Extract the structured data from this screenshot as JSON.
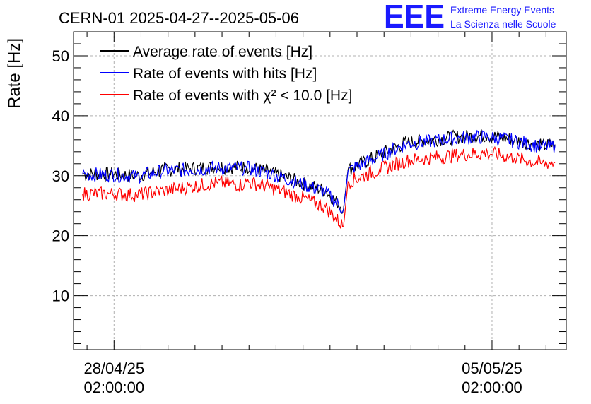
{
  "chart_data": {
    "type": "line",
    "title": "CERN-01 2025-04-27--2025-05-06",
    "ylabel": "Rate [Hz]",
    "xlabel": "",
    "ylim": [
      1,
      54
    ],
    "yticks": [
      10,
      20,
      30,
      40,
      50
    ],
    "xlim": [
      "2025-04-27 08:00",
      "2025-05-06 11:00"
    ],
    "xticks": [
      {
        "date": "2025-04-28 02:00",
        "label_date": "28/04/25",
        "label_time": "02:00:00"
      },
      {
        "date": "2025-05-05 02:00",
        "label_date": "05/05/25",
        "label_time": "02:00:00"
      }
    ],
    "grid": true,
    "legend_position": "top-left",
    "logo": {
      "mark": "EEE",
      "line1": "Extreme Energy Events",
      "line2": "La Scienza nelle Scuole",
      "color": "#1a1aff"
    },
    "series": [
      {
        "name": "Average rate of events [Hz]",
        "color": "#000000",
        "x": [
          "2025-04-27 12:00",
          "2025-04-28 00:00",
          "2025-04-28 12:00",
          "2025-04-29 00:00",
          "2025-04-29 12:00",
          "2025-04-30 00:00",
          "2025-04-30 12:00",
          "2025-04-30 13:00",
          "2025-05-01 00:00",
          "2025-05-01 12:00",
          "2025-05-02 00:00",
          "2025-05-02 08:00",
          "2025-05-02 10:00",
          "2025-05-03 00:00",
          "2025-05-03 12:00",
          "2025-05-04 00:00",
          "2025-05-04 12:00",
          "2025-05-05 00:00",
          "2025-05-05 12:00",
          "2025-05-06 00:00",
          "2025-05-06 06:00"
        ],
        "values": [
          30.3,
          30.3,
          30.0,
          31.0,
          31.2,
          31.5,
          31.4,
          31.5,
          30.5,
          29.0,
          27.5,
          24.5,
          31.0,
          33.5,
          35.5,
          36.0,
          36.5,
          36.7,
          36.0,
          35.0,
          35.2
        ]
      },
      {
        "name": "Rate of events with hits [Hz]",
        "color": "#0000ff",
        "x": [
          "2025-04-27 12:00",
          "2025-04-28 00:00",
          "2025-04-28 12:00",
          "2025-04-29 00:00",
          "2025-04-29 12:00",
          "2025-04-30 00:00",
          "2025-04-30 12:00",
          "2025-04-30 13:00",
          "2025-05-01 00:00",
          "2025-05-01 12:00",
          "2025-05-02 00:00",
          "2025-05-02 08:00",
          "2025-05-02 10:00",
          "2025-05-03 00:00",
          "2025-05-03 12:00",
          "2025-05-04 00:00",
          "2025-05-04 12:00",
          "2025-05-05 00:00",
          "2025-05-05 12:00",
          "2025-05-06 00:00",
          "2025-05-06 06:00"
        ],
        "values": [
          30.2,
          30.2,
          29.9,
          30.8,
          31.0,
          31.3,
          31.2,
          31.3,
          30.3,
          28.8,
          27.3,
          24.3,
          30.8,
          33.3,
          35.3,
          35.8,
          36.3,
          36.5,
          35.8,
          34.8,
          35.0
        ]
      },
      {
        "name": "Rate of events with χ² < 10.0 [Hz]",
        "color": "#ff0000",
        "x": [
          "2025-04-27 12:00",
          "2025-04-28 00:00",
          "2025-04-28 12:00",
          "2025-04-29 00:00",
          "2025-04-29 12:00",
          "2025-04-30 00:00",
          "2025-04-30 12:00",
          "2025-04-30 13:00",
          "2025-05-01 00:00",
          "2025-05-01 12:00",
          "2025-05-02 00:00",
          "2025-05-02 08:00",
          "2025-05-02 10:00",
          "2025-05-03 00:00",
          "2025-05-03 12:00",
          "2025-05-04 00:00",
          "2025-05-04 12:00",
          "2025-05-05 00:00",
          "2025-05-05 12:00",
          "2025-05-06 00:00",
          "2025-05-06 06:00"
        ],
        "values": [
          27.0,
          27.0,
          26.8,
          27.5,
          28.2,
          28.8,
          28.5,
          29.0,
          28.0,
          26.5,
          24.8,
          21.5,
          29.0,
          31.0,
          32.5,
          33.0,
          33.5,
          33.8,
          33.0,
          32.0,
          32.2
        ]
      }
    ]
  }
}
